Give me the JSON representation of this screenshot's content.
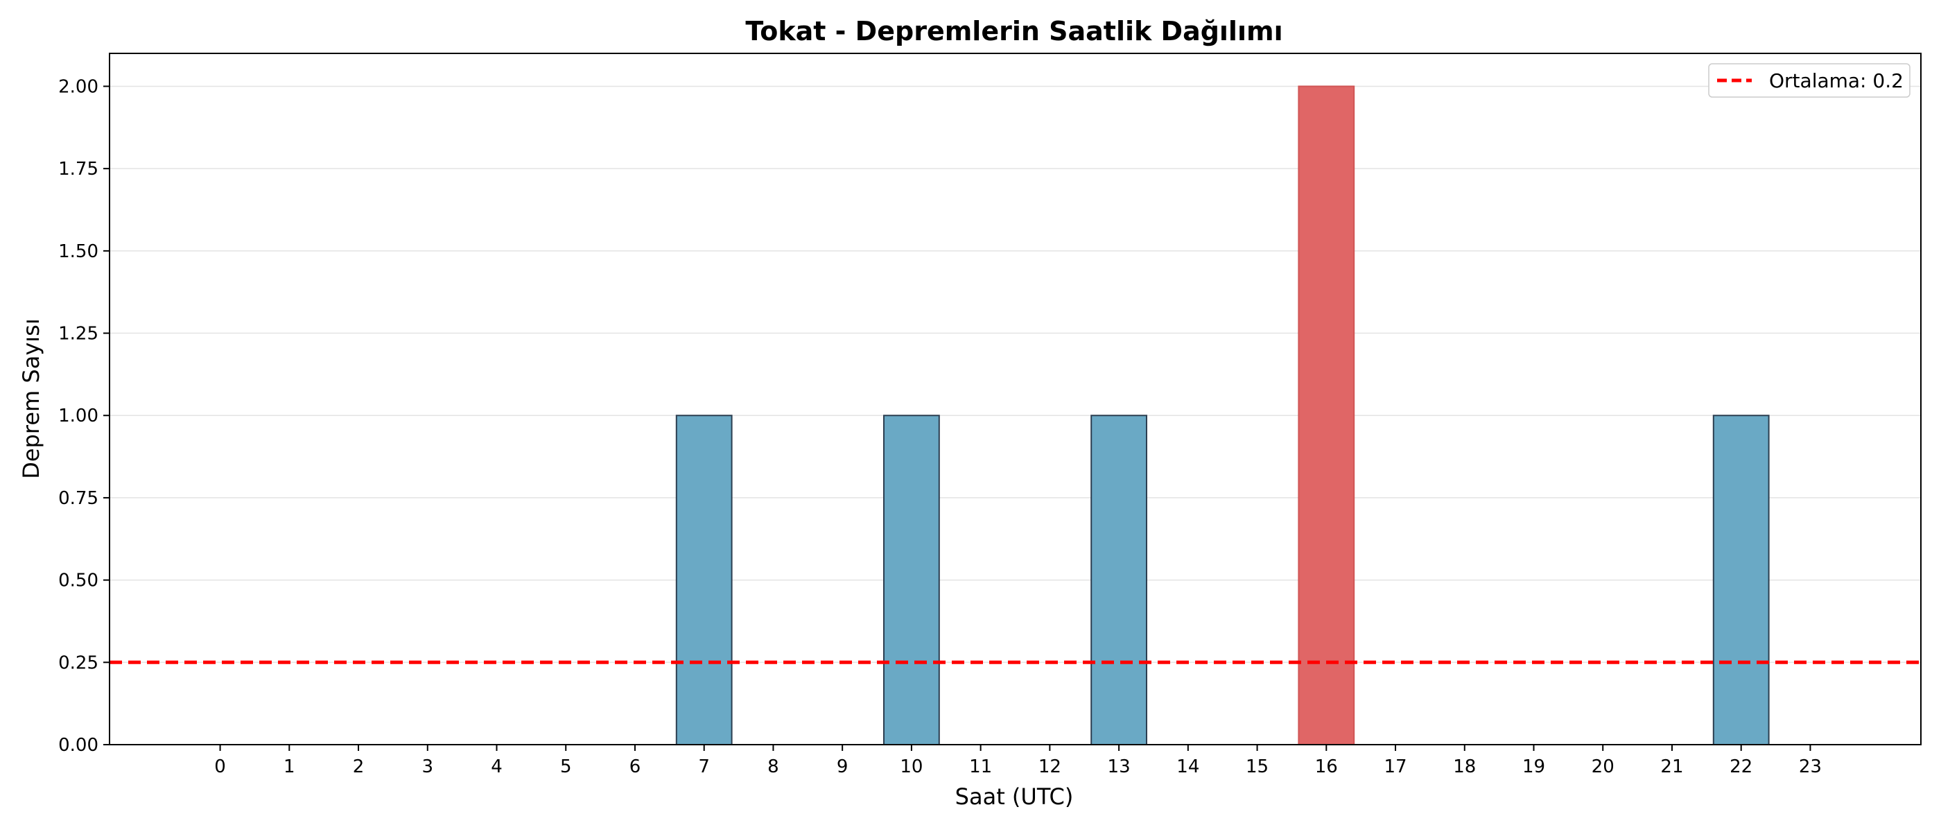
{
  "chart_data": {
    "type": "bar",
    "title": "Tokat - Depremlerin Saatlik Dağılımı",
    "xlabel": "Saat (UTC)",
    "ylabel": "Deprem Sayısı",
    "categories": [
      "0",
      "1",
      "2",
      "3",
      "4",
      "5",
      "6",
      "7",
      "8",
      "9",
      "10",
      "11",
      "12",
      "13",
      "14",
      "15",
      "16",
      "17",
      "18",
      "19",
      "20",
      "21",
      "22",
      "23"
    ],
    "values": [
      0,
      0,
      0,
      0,
      0,
      0,
      0,
      1,
      0,
      0,
      1,
      0,
      0,
      1,
      0,
      0,
      2,
      0,
      0,
      0,
      0,
      0,
      1,
      0
    ],
    "ylim": [
      0,
      2.1
    ],
    "yticks": [
      "0.00",
      "0.25",
      "0.50",
      "0.75",
      "1.00",
      "1.25",
      "1.50",
      "1.75",
      "2.00"
    ],
    "grid": "horizontal",
    "bar_color": "#6aa9c5",
    "bar_edge_color": "#2c3e50",
    "highlight_index": 16,
    "highlight_color": "#e06666",
    "reference_line": {
      "value": 0.25,
      "label": "Ortalama: 0.2",
      "color": "#ff0000",
      "style": "dashed"
    },
    "legend": {
      "position": "top-right",
      "entries": [
        "Ortalama: 0.2"
      ]
    }
  }
}
